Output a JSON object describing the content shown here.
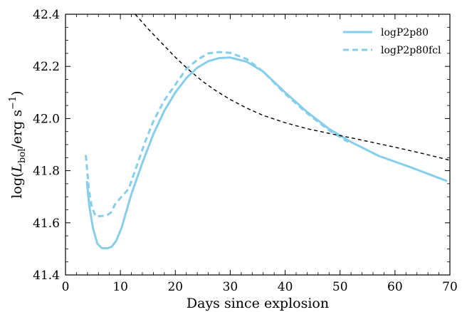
{
  "chart_data": {
    "type": "line",
    "xlabel": "Days since explosion",
    "ylabel": {
      "prefix": "log(",
      "L": "L",
      "sub": "bol",
      "mid": "/erg s",
      "sup": "−1",
      "suffix": ")"
    },
    "xlim": [
      0,
      70
    ],
    "ylim": [
      41.4,
      42.4
    ],
    "xticks": [
      0,
      10,
      20,
      30,
      40,
      50,
      60,
      70
    ],
    "yticks": [
      41.4,
      41.6,
      41.8,
      42.0,
      42.2,
      42.4
    ],
    "xtick_labels": [
      "0",
      "10",
      "20",
      "30",
      "40",
      "50",
      "60",
      "70"
    ],
    "ytick_labels": [
      "41.4",
      "41.6",
      "41.8",
      "42.0",
      "42.2",
      "42.4"
    ],
    "grid": false,
    "legend_position": "top-right",
    "series": [
      {
        "name": "logP2p80",
        "color": "#87ceeb",
        "dash": "solid",
        "x": [
          3.9,
          4.3,
          5.0,
          5.8,
          6.6,
          7.6,
          8.4,
          9.2,
          10.2,
          12.0,
          14.0,
          16.0,
          18.0,
          20.0,
          22.0,
          24.0,
          26.0,
          28.0,
          30.0,
          33.0,
          36.0,
          40.0,
          44.0,
          48.0,
          52.0,
          57.0,
          63.0,
          69.5
        ],
        "y": [
          41.76,
          41.67,
          41.58,
          41.52,
          41.503,
          41.502,
          41.508,
          41.53,
          41.58,
          41.71,
          41.83,
          41.94,
          42.03,
          42.1,
          42.155,
          42.195,
          42.22,
          42.232,
          42.234,
          42.218,
          42.18,
          42.1,
          42.025,
          41.96,
          41.91,
          41.857,
          41.812,
          41.76
        ]
      },
      {
        "name": "logP2p80fcl",
        "color": "#87ceeb",
        "dash": "dashed",
        "x": [
          3.7,
          4.3,
          4.8,
          5.5,
          6.5,
          7.5,
          8.3,
          9.0,
          10.2,
          11.5,
          13.0,
          14.5,
          16.0,
          18.0,
          20.0,
          22.0,
          24.0,
          26.0,
          28.0,
          30.0,
          33.0,
          36.0,
          40.0,
          44.0,
          48.0,
          51.5
        ],
        "y": [
          41.86,
          41.72,
          41.66,
          41.625,
          41.626,
          41.628,
          41.64,
          41.67,
          41.7,
          41.73,
          41.82,
          41.91,
          41.99,
          42.07,
          42.13,
          42.19,
          42.225,
          42.25,
          42.255,
          42.252,
          42.228,
          42.18,
          42.095,
          42.02,
          41.955,
          41.91
        ]
      },
      {
        "name": "",
        "color": "#000000",
        "dash": "dashed",
        "x": [
          12.7,
          15.0,
          17.5,
          20.0,
          22.5,
          25.0,
          27.5,
          30.0,
          33.0,
          36.0,
          40.0,
          44.0,
          48.0,
          52.0,
          56.0,
          60.0,
          65.0,
          70.0
        ],
        "y": [
          42.4,
          42.345,
          42.29,
          42.235,
          42.186,
          42.142,
          42.105,
          42.073,
          42.04,
          42.012,
          41.984,
          41.961,
          41.943,
          41.926,
          41.908,
          41.89,
          41.866,
          41.84
        ]
      }
    ]
  }
}
